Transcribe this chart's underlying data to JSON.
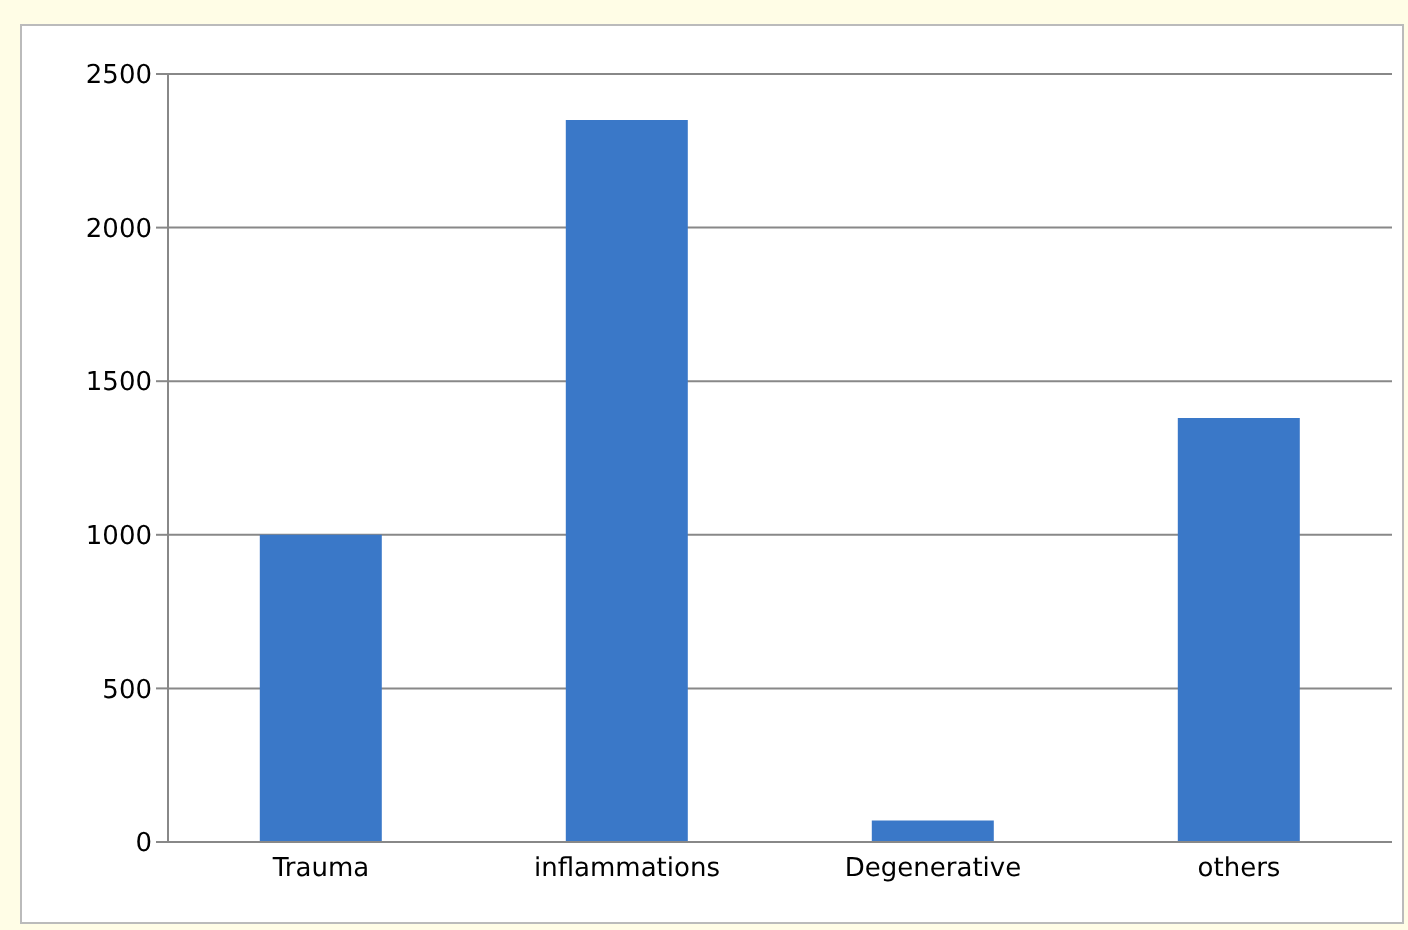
{
  "chart_data": {
    "type": "bar",
    "categories": [
      "Trauma",
      "inflammations",
      "Degenerative",
      "others"
    ],
    "values": [
      1000,
      2350,
      70,
      1380
    ],
    "color": "#3a78c8",
    "ylim": [
      0,
      2500
    ],
    "yticks": [
      0,
      500,
      1000,
      1500,
      2000,
      2500
    ],
    "grid": "y",
    "legend": false
  }
}
